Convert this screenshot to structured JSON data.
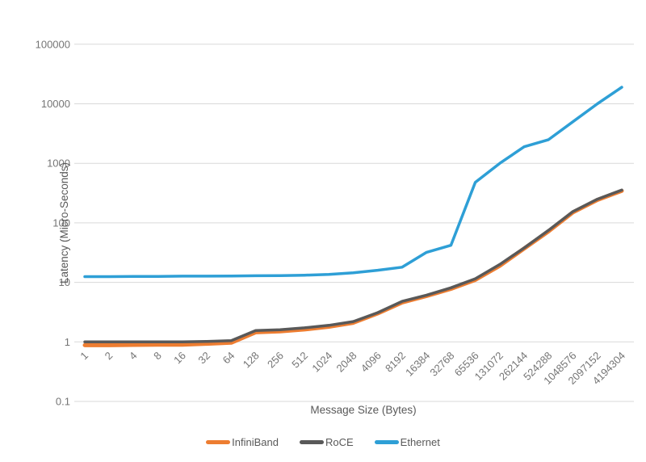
{
  "chart_data": {
    "type": "line",
    "title": "",
    "xlabel": "Message Size (Bytes)",
    "ylabel": "Latency (Micro-Seconds)",
    "y_scale": "log10",
    "ylim": [
      0.1,
      100000
    ],
    "y_ticks": [
      "100000",
      "10000",
      "1000",
      "100",
      "10",
      "1",
      "0.1"
    ],
    "grid": "horizontal",
    "legend_position": "bottom",
    "categories": [
      1,
      2,
      4,
      8,
      16,
      32,
      64,
      128,
      256,
      512,
      1024,
      2048,
      4096,
      8192,
      16384,
      32768,
      65536,
      131072,
      262144,
      524288,
      1048576,
      2097152,
      4194304
    ],
    "series": [
      {
        "name": "InfiniBand",
        "color": "#ED7D31",
        "values": [
          0.88,
          0.88,
          0.89,
          0.9,
          0.9,
          0.93,
          0.97,
          1.45,
          1.5,
          1.62,
          1.8,
          2.1,
          3.0,
          4.6,
          5.9,
          7.8,
          11,
          19,
          37,
          72,
          150,
          243,
          345
        ]
      },
      {
        "name": "RoCE",
        "color": "#595959",
        "values": [
          1.0,
          1.0,
          1.0,
          1.0,
          1.0,
          1.02,
          1.05,
          1.55,
          1.6,
          1.72,
          1.9,
          2.2,
          3.1,
          4.8,
          6.1,
          8.1,
          11.5,
          20,
          38,
          75,
          155,
          250,
          355
        ]
      },
      {
        "name": "Ethernet",
        "color": "#2E9FD6",
        "values": [
          12.5,
          12.5,
          12.6,
          12.6,
          12.7,
          12.7,
          12.8,
          12.9,
          13.0,
          13.2,
          13.6,
          14.5,
          16,
          18,
          32,
          42,
          480,
          1000,
          1900,
          2500,
          5000,
          10000,
          19000
        ]
      }
    ]
  }
}
